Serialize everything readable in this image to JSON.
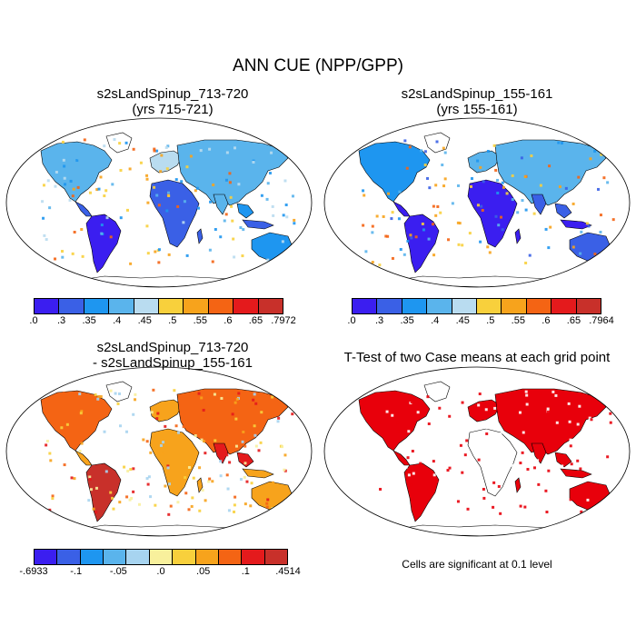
{
  "title": "ANN CUE (NPP/GPP)",
  "panels": [
    {
      "title": "s2sLandSpinup_713-720",
      "subtitle": "(yrs 715-721)"
    },
    {
      "title": "s2sLandSpinup_155-161",
      "subtitle": "(yrs 155-161)"
    },
    {
      "title": "s2sLandSpinup_713-720",
      "subtitle": "- s2sLandSpinup_155-161"
    },
    {
      "title": "T-Test of two Case means at each grid point"
    }
  ],
  "colorbars": [
    {
      "labels": [
        ".0",
        ".3",
        ".35",
        ".4",
        ".45",
        ".5",
        ".55",
        ".6",
        ".65",
        ".7972"
      ],
      "colors": [
        "#3b1ef0",
        "#3a60e6",
        "#1e96f0",
        "#5ab4ec",
        "#b9dcf0",
        "#f8d03c",
        "#f7a31c",
        "#f46414",
        "#e41a1c",
        "#c8302a"
      ]
    },
    {
      "labels": [
        ".0",
        ".3",
        ".35",
        ".4",
        ".45",
        ".5",
        ".55",
        ".6",
        ".65",
        ".7964"
      ],
      "colors": [
        "#3b1ef0",
        "#3a60e6",
        "#1e96f0",
        "#5ab4ec",
        "#b9dcf0",
        "#f8d03c",
        "#f7a31c",
        "#f46414",
        "#e41a1c",
        "#c8302a"
      ]
    },
    {
      "labels": [
        "-.6933",
        "-.1",
        "-.05",
        ".0",
        ".05",
        ".1",
        ".4514"
      ],
      "colors": [
        "#3b1ef0",
        "#3a60e6",
        "#1e96f0",
        "#5ab4ec",
        "#a7d4f0",
        "#f8f09c",
        "#f8d03c",
        "#f7a31c",
        "#f46414",
        "#e41a1c",
        "#c8302a"
      ]
    }
  ],
  "significance_note": "Cells are significant at 0.1 level",
  "significance_color": "#e8000b"
}
